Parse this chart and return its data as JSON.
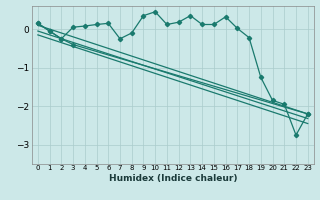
{
  "xlabel": "Humidex (Indice chaleur)",
  "ylabel": "",
  "bg_color": "#cce8e8",
  "line_color": "#1a7a6e",
  "grid_color": "#aacccc",
  "xlim": [
    -0.5,
    23.5
  ],
  "ylim": [
    -3.5,
    0.6
  ],
  "yticks": [
    0,
    -1,
    -2,
    -3
  ],
  "xticks": [
    0,
    1,
    2,
    3,
    4,
    5,
    6,
    7,
    8,
    9,
    10,
    11,
    12,
    13,
    14,
    15,
    16,
    17,
    18,
    19,
    20,
    21,
    22,
    23
  ],
  "series1_x": [
    0,
    1,
    2,
    3,
    4,
    5,
    6,
    7,
    8,
    9,
    10,
    11,
    12,
    13,
    14,
    15,
    16,
    17,
    18,
    19,
    20,
    21,
    22,
    23
  ],
  "series1_y": [
    0.15,
    -0.05,
    -0.25,
    0.05,
    0.08,
    0.12,
    0.15,
    -0.25,
    -0.1,
    0.35,
    0.45,
    0.12,
    0.18,
    0.35,
    0.12,
    0.12,
    0.32,
    0.02,
    -0.22,
    -1.25,
    -1.85,
    -1.95,
    -2.75,
    -2.2
  ],
  "series2_x": [
    0,
    1,
    2,
    3,
    23
  ],
  "series2_y": [
    0.15,
    -0.05,
    -0.25,
    -0.4,
    -2.2
  ],
  "series3_x": [
    0,
    23
  ],
  "series3_y": [
    0.1,
    -2.2
  ],
  "series4_x": [
    0,
    23
  ],
  "series4_y": [
    -0.05,
    -2.32
  ],
  "series5_x": [
    0,
    23
  ],
  "series5_y": [
    -0.15,
    -2.45
  ]
}
